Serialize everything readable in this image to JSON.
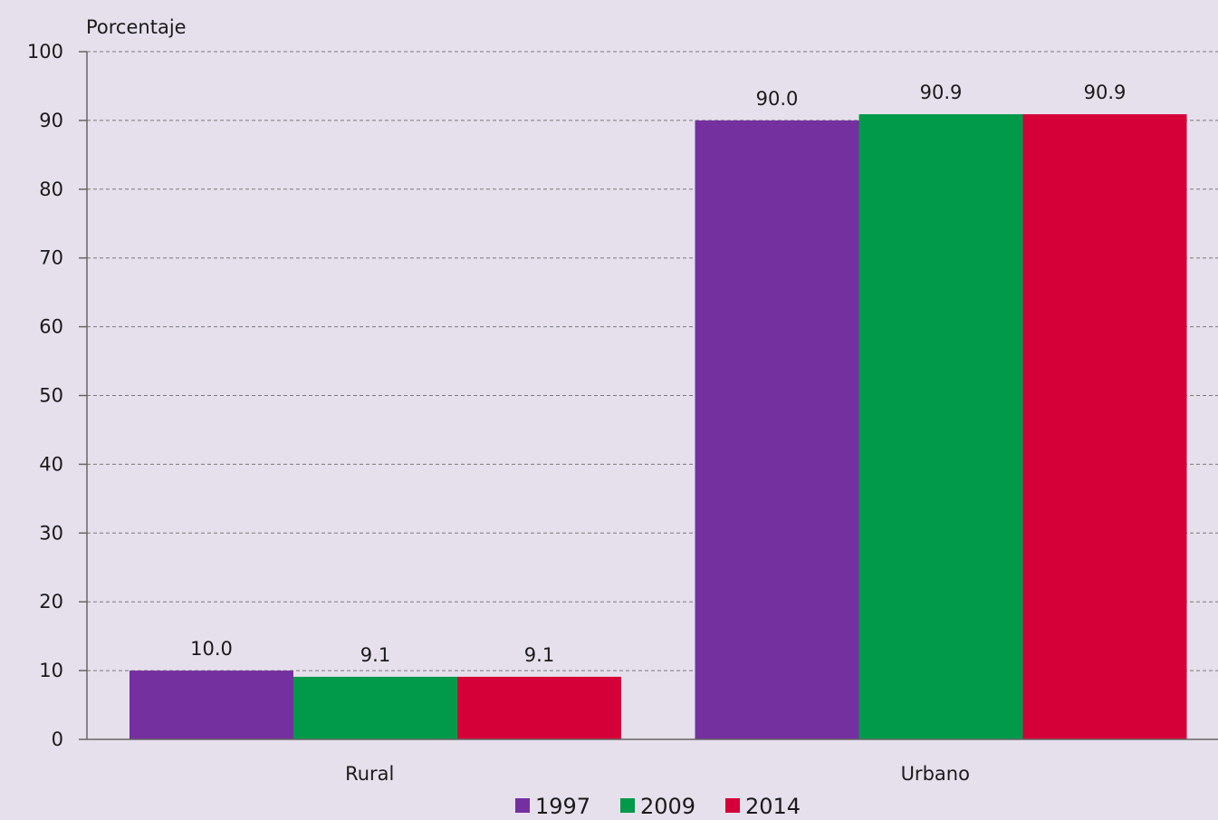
{
  "chart_data": {
    "type": "bar",
    "ylabel": "Porcentaje",
    "xlabel": "",
    "ylim": [
      0,
      100
    ],
    "yticks": [
      0,
      10,
      20,
      30,
      40,
      50,
      60,
      70,
      80,
      90,
      100
    ],
    "grid": true,
    "legend_position": "bottom",
    "categories": [
      "Rural",
      "Urbano"
    ],
    "series": [
      {
        "name": "1997",
        "color": "#7530a0",
        "values": [
          10.0,
          90.0
        ],
        "labels": [
          "10.0",
          "90.0"
        ]
      },
      {
        "name": "2009",
        "color": "#009a4a",
        "values": [
          9.1,
          90.9
        ],
        "labels": [
          "9.1",
          "90.9"
        ]
      },
      {
        "name": "2014",
        "color": "#d60039",
        "values": [
          9.1,
          90.9
        ],
        "labels": [
          "9.1",
          "90.9"
        ]
      }
    ]
  },
  "colors": {
    "background": "#e6e0ec",
    "axis": "#666666",
    "grid": "#7a7a7a"
  }
}
